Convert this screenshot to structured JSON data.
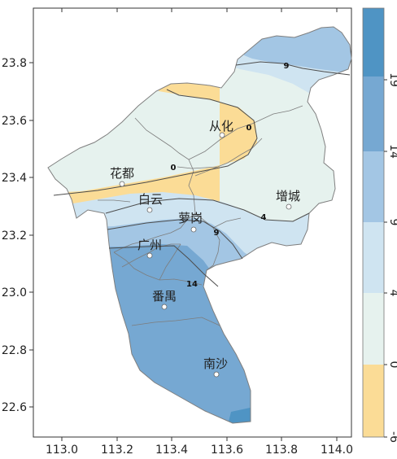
{
  "chart_data": {
    "type": "heatmap",
    "x_ticks": [
      "113.0",
      "113.2",
      "113.4",
      "113.6",
      "113.8",
      "114.0"
    ],
    "y_ticks": [
      "22.6",
      "22.8",
      "23.0",
      "23.2",
      "23.4",
      "23.6",
      "23.8"
    ],
    "xlim": [
      112.9,
      114.1
    ],
    "ylim": [
      22.55,
      23.95
    ],
    "legend_ticks": [
      "19",
      "14",
      "9",
      "4",
      "0",
      "-6"
    ],
    "legend_bands": [
      {
        "from": 19,
        "to": 24,
        "color": "#4f94c4"
      },
      {
        "from": 14,
        "to": 19,
        "color": "#76a8d2"
      },
      {
        "from": 9,
        "to": 14,
        "color": "#a3c6e4"
      },
      {
        "from": 4,
        "to": 9,
        "color": "#cfe4f1"
      },
      {
        "from": 0,
        "to": 4,
        "color": "#e6f2ee"
      },
      {
        "from": -6,
        "to": 0,
        "color": "#fbdc96"
      }
    ],
    "districts": [
      {
        "name": "从化",
        "lon": 113.58,
        "lat": 23.55
      },
      {
        "name": "花都",
        "lon": 113.21,
        "lat": 23.38
      },
      {
        "name": "白云",
        "lon": 113.32,
        "lat": 23.29
      },
      {
        "name": "萝岗",
        "lon": 113.48,
        "lat": 23.22
      },
      {
        "name": "增城",
        "lon": 113.82,
        "lat": 23.3
      },
      {
        "name": "广州",
        "lon": 113.31,
        "lat": 23.13
      },
      {
        "name": "番禺",
        "lon": 113.38,
        "lat": 22.95
      },
      {
        "name": "南沙",
        "lon": 113.57,
        "lat": 22.71
      }
    ],
    "contour_labels": [
      {
        "value": "9",
        "lon": 113.8,
        "lat": 23.8
      },
      {
        "value": "0",
        "lon": 113.64,
        "lat": 23.58
      },
      {
        "value": "0",
        "lon": 113.3,
        "lat": 23.41
      },
      {
        "value": "4",
        "lon": 113.67,
        "lat": 23.26
      },
      {
        "value": "9",
        "lon": 113.57,
        "lat": 23.19
      },
      {
        "value": "14",
        "lon": 113.47,
        "lat": 23.05
      }
    ]
  }
}
